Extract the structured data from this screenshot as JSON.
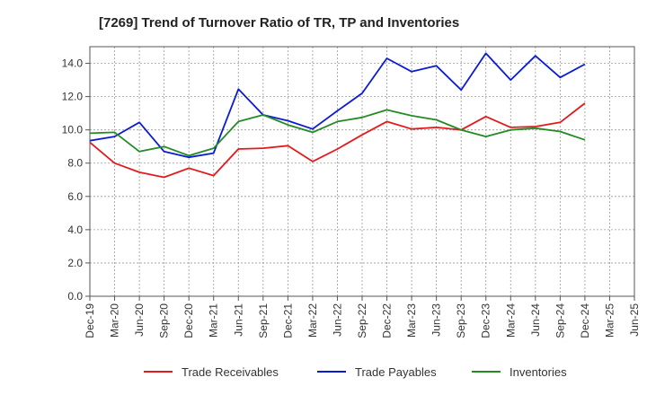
{
  "chart_data": {
    "type": "line",
    "title": "[7269]  Trend of Turnover Ratio of TR, TP and Inventories",
    "xlabel": "",
    "ylabel": "",
    "ylim": [
      0,
      15
    ],
    "yticks": [
      "0.0",
      "2.0",
      "4.0",
      "6.0",
      "8.0",
      "10.0",
      "12.0",
      "14.0"
    ],
    "grid": true,
    "legend_position": "bottom",
    "categories": [
      "Dec-19",
      "Mar-20",
      "Jun-20",
      "Sep-20",
      "Dec-20",
      "Mar-21",
      "Jun-21",
      "Sep-21",
      "Dec-21",
      "Mar-22",
      "Jun-22",
      "Sep-22",
      "Dec-22",
      "Mar-23",
      "Jun-23",
      "Sep-23",
      "Dec-23",
      "Mar-24",
      "Jun-24",
      "Sep-24",
      "Dec-24",
      "Mar-25",
      "Jun-25"
    ],
    "series": [
      {
        "name": "Trade Receivables",
        "color": "#e31a1c",
        "values": [
          9.25,
          8.0,
          7.45,
          7.15,
          7.7,
          7.25,
          8.85,
          8.9,
          9.05,
          8.1,
          8.85,
          9.7,
          10.5,
          10.05,
          10.15,
          10.0,
          10.8,
          10.15,
          10.2,
          10.45,
          11.6,
          null,
          null
        ]
      },
      {
        "name": "Trade Payables",
        "color": "#0a1bd6",
        "values": [
          9.35,
          9.6,
          10.45,
          8.7,
          8.35,
          8.6,
          12.45,
          10.9,
          10.55,
          10.05,
          11.15,
          12.2,
          14.3,
          13.5,
          13.85,
          12.4,
          14.6,
          13.0,
          14.45,
          13.15,
          13.95,
          null,
          null
        ]
      },
      {
        "name": "Inventories",
        "color": "#238b23",
        "values": [
          9.8,
          9.85,
          8.7,
          9.0,
          8.45,
          8.9,
          10.5,
          10.9,
          10.3,
          9.85,
          10.5,
          10.75,
          11.2,
          10.85,
          10.6,
          10.0,
          9.6,
          10.0,
          10.1,
          9.9,
          9.4,
          null,
          null
        ]
      }
    ]
  }
}
